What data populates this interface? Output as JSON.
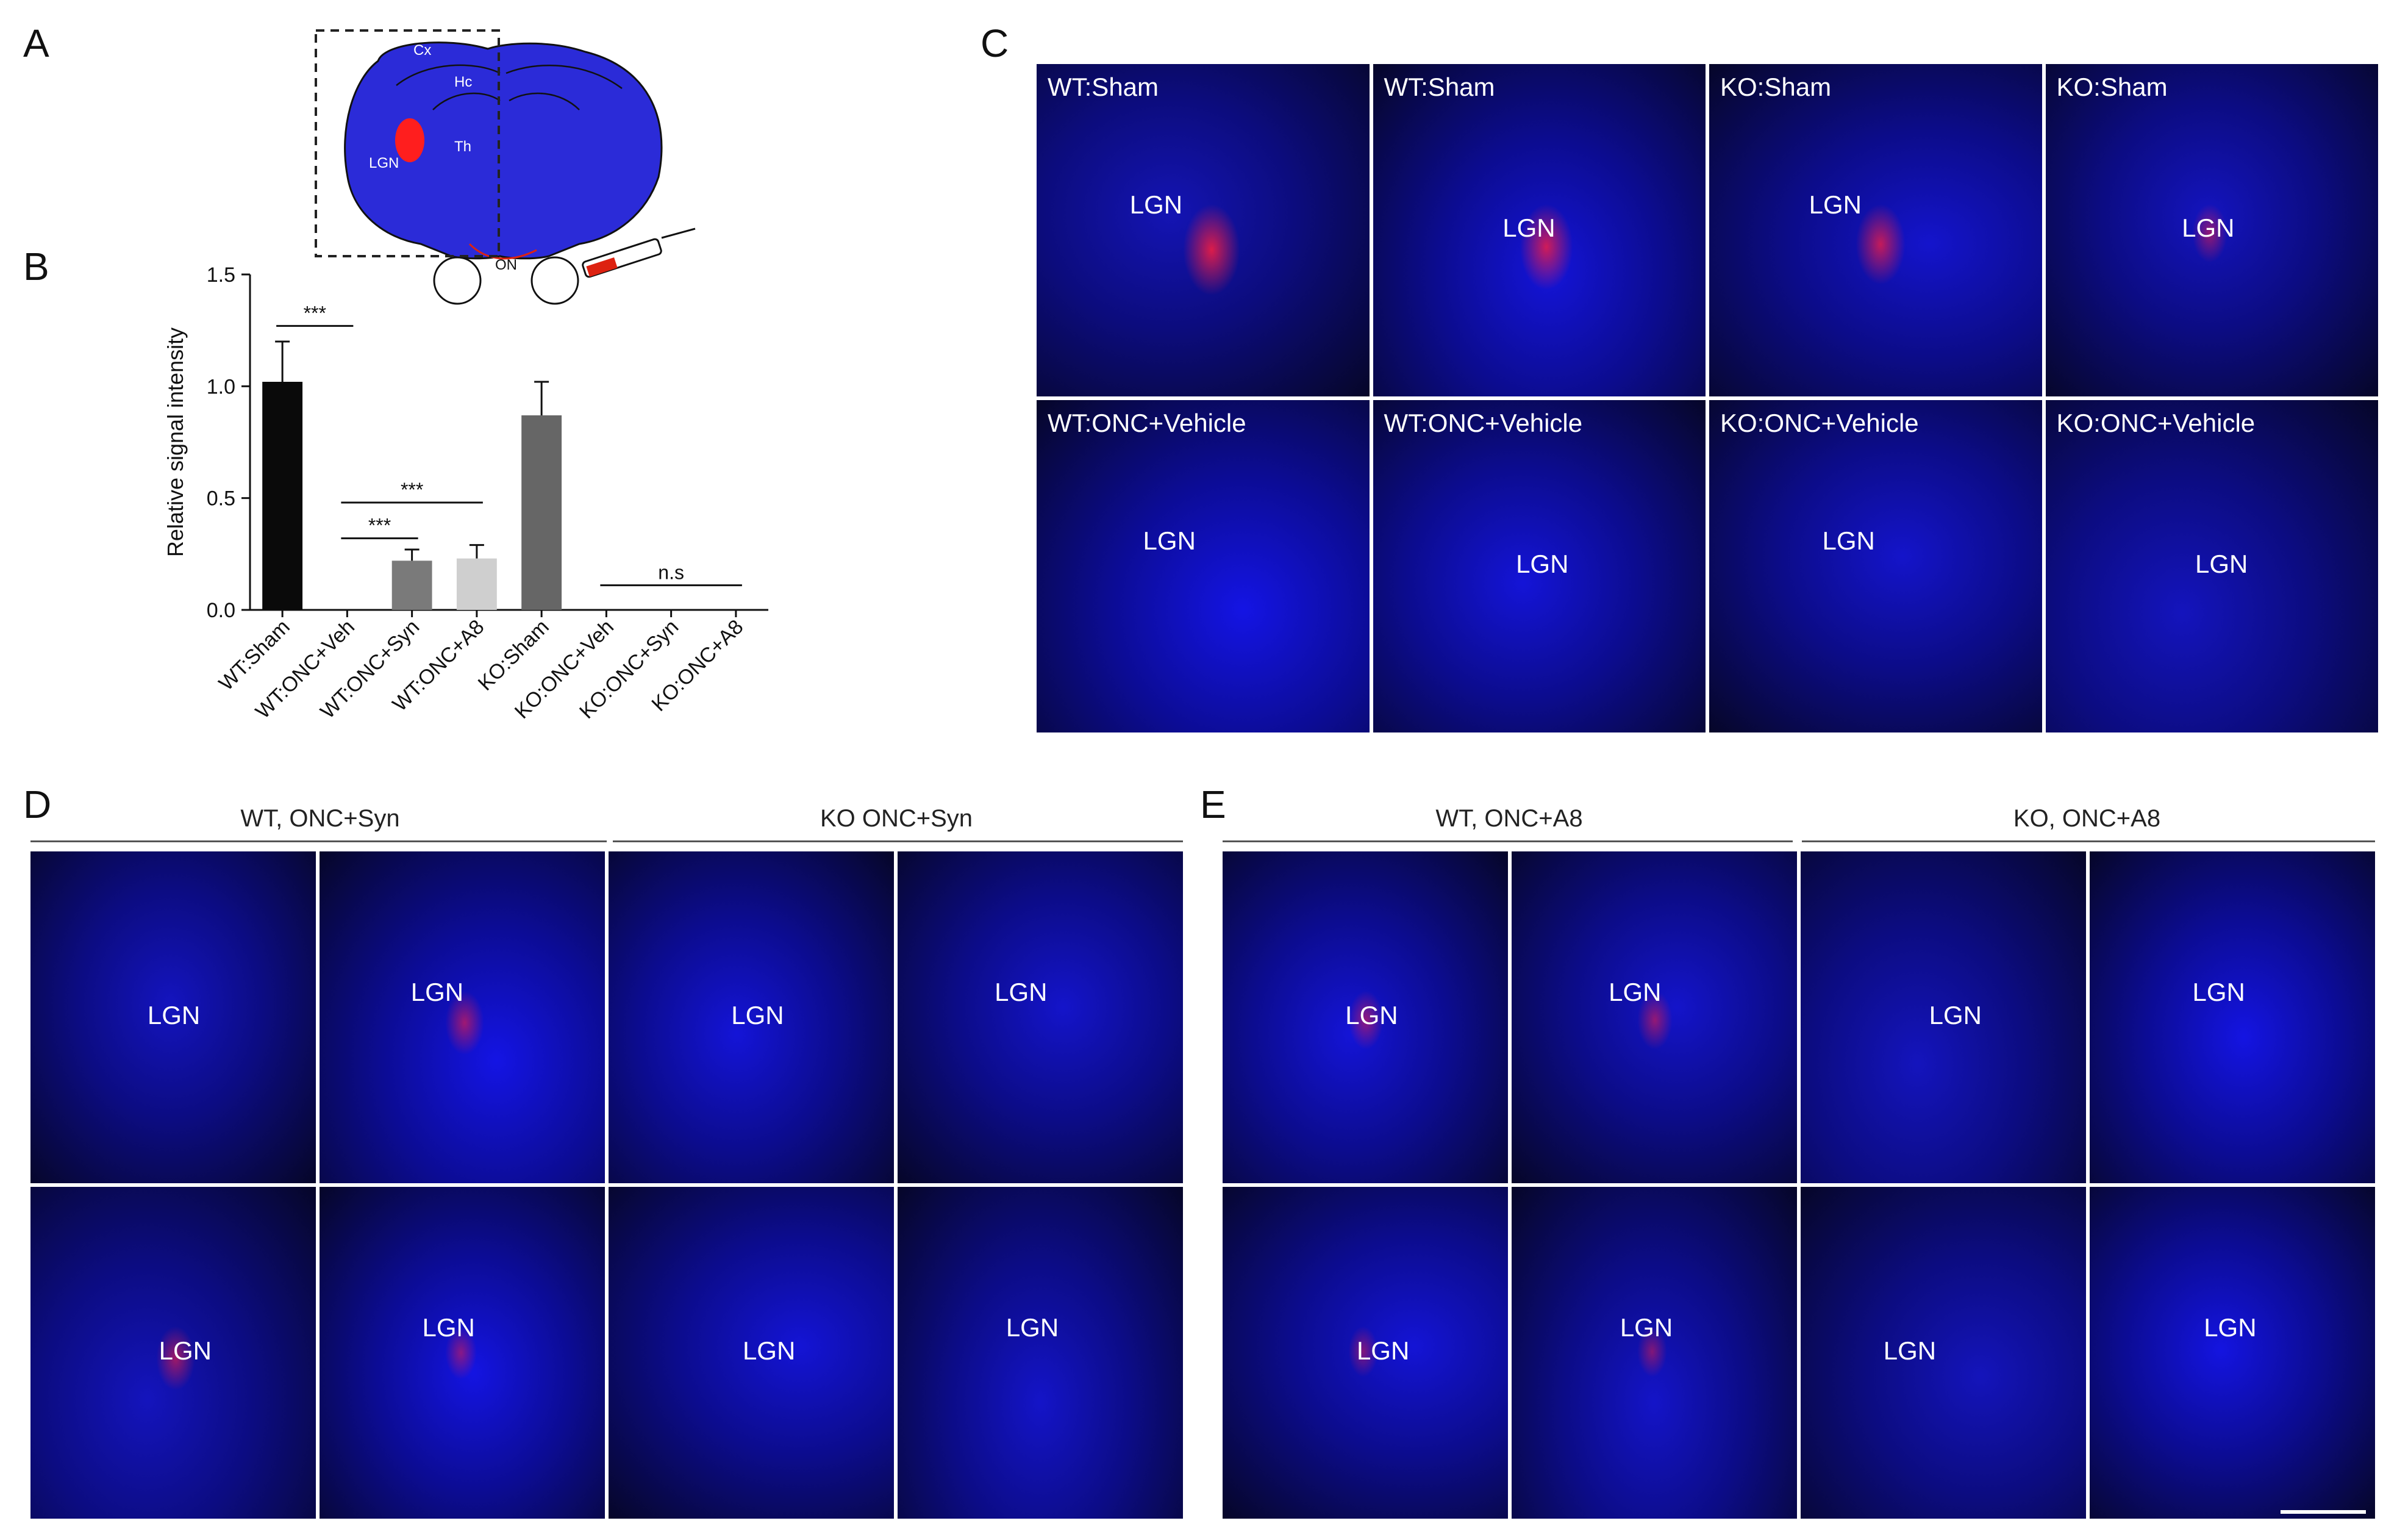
{
  "panels": {
    "A": {
      "letter": "A",
      "labels": {
        "cx": "Cx",
        "hc": "Hc",
        "th": "Th",
        "lgn": "LGN",
        "on": "ON"
      }
    },
    "B": {
      "letter": "B",
      "sig": {
        "s1": "***",
        "s2": "***",
        "s3": "***",
        "ns": "n.s"
      }
    },
    "C": {
      "letter": "C",
      "tiles": [
        {
          "cap": "WT:Sham",
          "lgn": "LGN",
          "red": 0.9
        },
        {
          "cap": "WT:Sham",
          "lgn": "LGN",
          "red": 0.8
        },
        {
          "cap": "KO:Sham",
          "lgn": "LGN",
          "red": 0.7
        },
        {
          "cap": "KO:Sham",
          "lgn": "LGN",
          "red": 0.3
        },
        {
          "cap": "WT:ONC+Vehicle",
          "lgn": "LGN",
          "red": 0
        },
        {
          "cap": "WT:ONC+Vehicle",
          "lgn": "LGN",
          "red": 0
        },
        {
          "cap": "KO:ONC+Vehicle",
          "lgn": "LGN",
          "red": 0
        },
        {
          "cap": "KO:ONC+Vehicle",
          "lgn": "LGN",
          "red": 0
        }
      ]
    },
    "D": {
      "letter": "D",
      "group_left": "WT, ONC+Syn",
      "group_right": "KO ONC+Syn",
      "tiles": [
        "LGN",
        "LGN",
        "LGN",
        "LGN",
        "LGN",
        "LGN",
        "LGN",
        "LGN"
      ]
    },
    "E": {
      "letter": "E",
      "group_left": "WT, ONC+A8",
      "group_right": "KO, ONC+A8",
      "tiles": [
        "LGN",
        "LGN",
        "LGN",
        "LGN",
        "LGN",
        "LGN",
        "LGN",
        "LGN"
      ]
    }
  },
  "chart_data": {
    "type": "bar",
    "categories": [
      "WT:Sham",
      "WT:ONC+Veh",
      "WT:ONC+Syn",
      "WT:ONC+A8",
      "KO:Sham",
      "KO:ONC+Veh",
      "KO:ONC+Syn",
      "KO:ONC+A8"
    ],
    "values": [
      1.02,
      0.0,
      0.22,
      0.23,
      0.87,
      0.0,
      0.0,
      0.0
    ],
    "errors": [
      0.18,
      0.0,
      0.05,
      0.06,
      0.15,
      0.0,
      0.0,
      0.0
    ],
    "colors": [
      "#0a0a0a",
      "#0a0a0a",
      "#7a7a7a",
      "#cfcfcf",
      "#666666",
      "#666666",
      "#666666",
      "#666666"
    ],
    "ylabel": "Relative signal intensity",
    "ylim": [
      0,
      1.5
    ],
    "yticks": [
      "0.0",
      "0.5",
      "1.0",
      "1.5"
    ],
    "ytick_values": [
      0,
      0.5,
      1.0,
      1.5
    ]
  }
}
